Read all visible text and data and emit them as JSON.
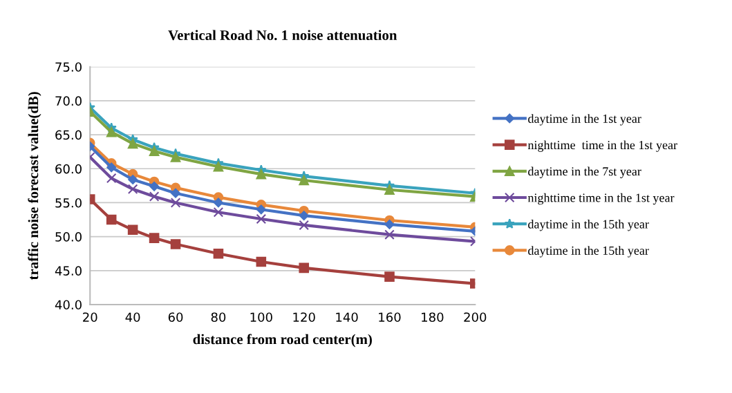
{
  "chart_data": {
    "type": "line",
    "title": "Vertical Road No. 1 noise attenuation",
    "xlabel": "distance from road center(m)",
    "ylabel": "traffic noise forecast value(dB)",
    "x": [
      20,
      30,
      40,
      50,
      60,
      80,
      100,
      120,
      160,
      200
    ],
    "series": [
      {
        "name": "daytime in the 1st year",
        "color": "#4472c4",
        "marker": "diamond",
        "values": [
          63.3,
          60.2,
          58.4,
          57.4,
          56.4,
          55.0,
          54.0,
          53.1,
          51.8,
          50.8
        ]
      },
      {
        "name": "nighttime  time in the 1st year",
        "color": "#a5403d",
        "marker": "square",
        "values": [
          55.5,
          52.5,
          51.0,
          49.8,
          48.9,
          47.5,
          46.3,
          45.4,
          44.1,
          43.1
        ]
      },
      {
        "name": "daytime in the 7st year",
        "color": "#7fa543",
        "marker": "triangle",
        "values": [
          68.4,
          65.4,
          63.7,
          62.6,
          61.7,
          60.3,
          59.2,
          58.3,
          56.9,
          55.9
        ]
      },
      {
        "name": "nighttime time in the 1st year",
        "color": "#6e4b9c",
        "marker": "cross",
        "values": [
          61.7,
          58.6,
          57.0,
          55.9,
          55.0,
          53.6,
          52.6,
          51.7,
          50.3,
          49.3
        ]
      },
      {
        "name": "daytime in the 15th year",
        "color": "#3aa3bd",
        "marker": "star",
        "values": [
          69.0,
          66.0,
          64.3,
          63.1,
          62.2,
          60.8,
          59.8,
          58.9,
          57.5,
          56.4
        ]
      },
      {
        "name": "daytime in the 15th year",
        "color": "#e8883a",
        "marker": "circle",
        "values": [
          63.8,
          60.8,
          59.2,
          58.1,
          57.2,
          55.8,
          54.7,
          53.8,
          52.4,
          51.4
        ]
      }
    ],
    "xlim": [
      20,
      200
    ],
    "xticks": [
      20,
      40,
      60,
      80,
      100,
      120,
      140,
      160,
      180,
      200
    ],
    "ylim": [
      40,
      75
    ],
    "yticks": [
      {
        "value": 40,
        "label": "40.0"
      },
      {
        "value": 45,
        "label": "45.0"
      },
      {
        "value": 50,
        "label": "50.0"
      },
      {
        "value": 55,
        "label": "55.0"
      },
      {
        "value": 60,
        "label": "60.0"
      },
      {
        "value": 65,
        "label": "65.0"
      },
      {
        "value": 70,
        "label": "70.0"
      },
      {
        "value": 75,
        "label": "75.0"
      }
    ],
    "grid": "y",
    "legend": "right",
    "line_style": "solid"
  }
}
